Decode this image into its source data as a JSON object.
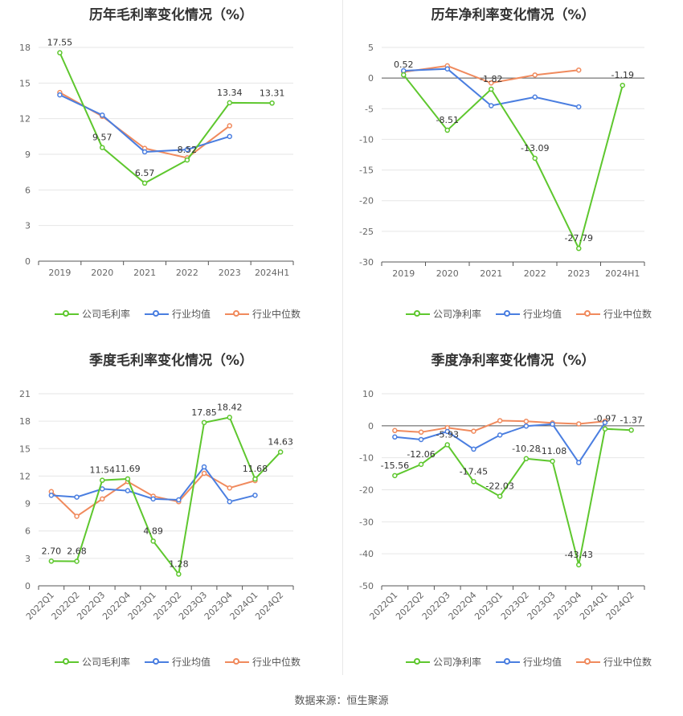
{
  "source": "数据来源：恒生聚源",
  "colors": {
    "company": "#5ec72e",
    "avg": "#4a7ee0",
    "median": "#f08a5d"
  },
  "legend": {
    "company_gross": "公司毛利率",
    "company_net": "公司净利率",
    "avg": "行业均值",
    "median": "行业中位数"
  },
  "chart_data": [
    {
      "id": "annual-gross",
      "type": "line",
      "title": "历年毛利率变化情况（%）",
      "x": [
        "2019",
        "2020",
        "2021",
        "2022",
        "2023",
        "2024H1"
      ],
      "ylim": [
        0,
        18
      ],
      "yticks": [
        0,
        3,
        6,
        9,
        12,
        15,
        18
      ],
      "series": [
        {
          "name": "公司毛利率",
          "values": [
            17.55,
            9.57,
            6.57,
            8.52,
            13.34,
            13.31
          ]
        },
        {
          "name": "行业均值",
          "values": [
            14.0,
            12.3,
            9.2,
            9.4,
            10.5,
            null
          ]
        },
        {
          "name": "行业中位数",
          "values": [
            14.2,
            12.2,
            9.5,
            8.7,
            11.4,
            null
          ]
        }
      ],
      "data_labels": [
        "17.55",
        "9.57",
        "6.57",
        "8.52",
        "13.34",
        "13.31"
      ]
    },
    {
      "id": "annual-net",
      "type": "line",
      "title": "历年净利率变化情况（%）",
      "x": [
        "2019",
        "2020",
        "2021",
        "2022",
        "2023",
        "2024H1"
      ],
      "ylim": [
        -30,
        5
      ],
      "yticks": [
        -30,
        -25,
        -20,
        -15,
        -10,
        -5,
        0,
        5
      ],
      "series": [
        {
          "name": "公司净利率",
          "values": [
            0.52,
            -8.51,
            -1.82,
            -13.09,
            -27.79,
            -1.19
          ]
        },
        {
          "name": "行业均值",
          "values": [
            1.2,
            1.5,
            -4.5,
            -3.1,
            -4.7,
            null
          ]
        },
        {
          "name": "行业中位数",
          "values": [
            1.0,
            2.0,
            -0.8,
            0.5,
            1.3,
            null
          ]
        }
      ],
      "data_labels": [
        "0.52",
        "-8.51",
        "-1.82",
        "-13.09",
        "-27.79",
        "-1.19"
      ]
    },
    {
      "id": "quarter-gross",
      "type": "line",
      "title": "季度毛利率变化情况（%）",
      "x": [
        "2022Q1",
        "2022Q2",
        "2022Q3",
        "2022Q4",
        "2023Q1",
        "2023Q2",
        "2023Q3",
        "2023Q4",
        "2024Q1",
        "2024Q2"
      ],
      "ylim": [
        0,
        21
      ],
      "yticks": [
        0,
        3,
        6,
        9,
        12,
        15,
        18,
        21
      ],
      "series": [
        {
          "name": "公司毛利率",
          "values": [
            2.7,
            2.68,
            11.54,
            11.69,
            4.89,
            1.28,
            17.85,
            18.42,
            11.68,
            14.63
          ]
        },
        {
          "name": "行业均值",
          "values": [
            9.9,
            9.7,
            10.6,
            10.4,
            9.5,
            9.4,
            13.0,
            9.2,
            9.9,
            null
          ]
        },
        {
          "name": "行业中位数",
          "values": [
            10.3,
            7.6,
            9.5,
            11.4,
            9.8,
            9.2,
            12.3,
            10.7,
            11.5,
            null
          ]
        }
      ],
      "data_labels": [
        "2.70",
        "2.68",
        "11.54",
        "11.69",
        "4.89",
        "1.28",
        "17.85",
        "18.42",
        "11.68",
        "14.63"
      ]
    },
    {
      "id": "quarter-net",
      "type": "line",
      "title": "季度净利率变化情况（%）",
      "x": [
        "2022Q1",
        "2022Q2",
        "2022Q3",
        "2022Q4",
        "2023Q1",
        "2023Q2",
        "2023Q3",
        "2023Q4",
        "2024Q1",
        "2024Q2"
      ],
      "ylim": [
        -50,
        10
      ],
      "yticks": [
        -50,
        -40,
        -30,
        -20,
        -10,
        0,
        10
      ],
      "series": [
        {
          "name": "公司净利率",
          "values": [
            -15.56,
            -12.06,
            -5.93,
            -17.45,
            -22.03,
            -10.28,
            -11.08,
            -43.43,
            -0.97,
            -1.37
          ]
        },
        {
          "name": "行业均值",
          "values": [
            -3.5,
            -4.3,
            -1.8,
            -7.3,
            -2.9,
            -0.1,
            0.5,
            -11.5,
            1.0,
            null
          ]
        },
        {
          "name": "行业中位数",
          "values": [
            -1.5,
            -2.0,
            -0.6,
            -1.7,
            1.6,
            1.4,
            0.9,
            0.6,
            1.4,
            null
          ]
        }
      ],
      "data_labels": [
        "-15.56",
        "-12.06",
        "-5.93",
        "-17.45",
        "-22.03",
        "-10.28",
        "-11.08",
        "-43.43",
        "-0.97",
        "-1.37"
      ]
    }
  ]
}
